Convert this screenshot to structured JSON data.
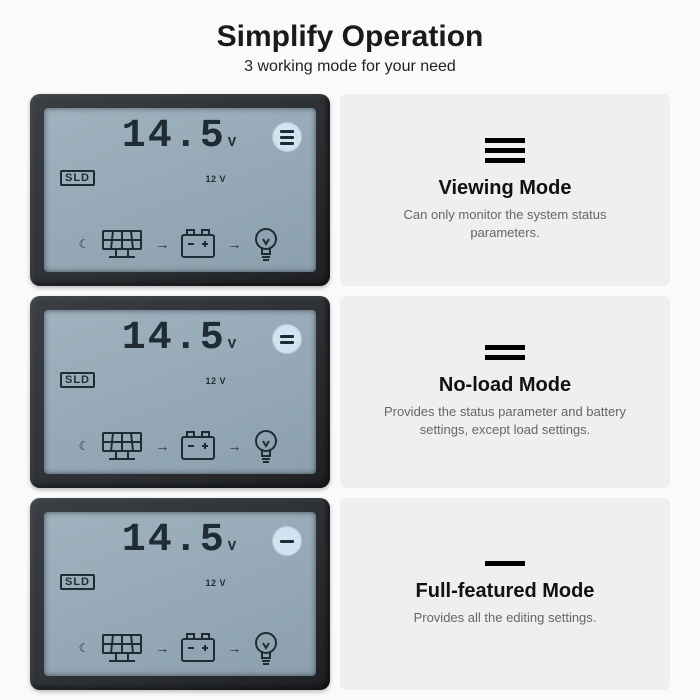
{
  "header": {
    "title": "Simplify Operation",
    "title_fontsize": 30,
    "subtitle": "3 working mode for your need",
    "subtitle_fontsize": 16
  },
  "lcd": {
    "bg_color": "#9fb3bf",
    "fg_color": "#1f2c33",
    "readout_value": "14.5",
    "readout_unit": "V",
    "readout_fontsize": 40,
    "sld_label": "SLD",
    "battery_label": "12 V",
    "corner_btn_bg": "#cfe6f2",
    "device_bezel": "#2e3236"
  },
  "modes": [
    {
      "key": "viewing",
      "icon_bars": 3,
      "icon_bar_width": 40,
      "title": "Viewing Mode",
      "title_fontsize": 20,
      "desc": "Can only monitor the system status parameters.",
      "desc_fontsize": 13,
      "corner_btn_bars": 3,
      "corner_bar_width": 14
    },
    {
      "key": "noload",
      "icon_bars": 2,
      "icon_bar_width": 40,
      "title": "No-load Mode",
      "title_fontsize": 20,
      "desc": "Provides the status parameter and battery settings, except load settings.",
      "desc_fontsize": 13,
      "corner_btn_bars": 2,
      "corner_bar_width": 14
    },
    {
      "key": "full",
      "icon_bars": 1,
      "icon_bar_width": 40,
      "title": "Full-featured Mode",
      "title_fontsize": 20,
      "desc": "Provides all the editing settings.",
      "desc_fontsize": 13,
      "corner_btn_bars": 1,
      "corner_bar_width": 14
    }
  ],
  "layout": {
    "desc_bg": "#efefef",
    "page_bg": "#fafafa"
  }
}
